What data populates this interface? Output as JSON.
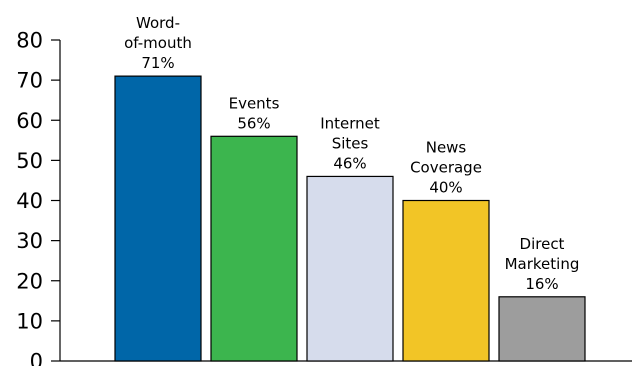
{
  "chart_data": {
    "type": "bar",
    "categories": [
      [
        "Word-",
        "of-mouth"
      ],
      [
        "Events"
      ],
      [
        "Internet",
        "Sites"
      ],
      [
        "News",
        "Coverage"
      ],
      [
        "Direct",
        "Marketing"
      ]
    ],
    "values": [
      71,
      56,
      46,
      40,
      16
    ],
    "value_labels": [
      "71%",
      "56%",
      "46%",
      "40%",
      "16%"
    ],
    "bar_colors": [
      "#0066a8",
      "#3cb54e",
      "#d6dcec",
      "#f2c526",
      "#9d9d9d"
    ],
    "ylim": [
      0,
      80
    ],
    "yticks": [
      "0",
      "10",
      "20",
      "30",
      "40",
      "50",
      "60",
      "70",
      "80"
    ],
    "grid": false,
    "title": "",
    "xlabel": "",
    "ylabel": ""
  }
}
